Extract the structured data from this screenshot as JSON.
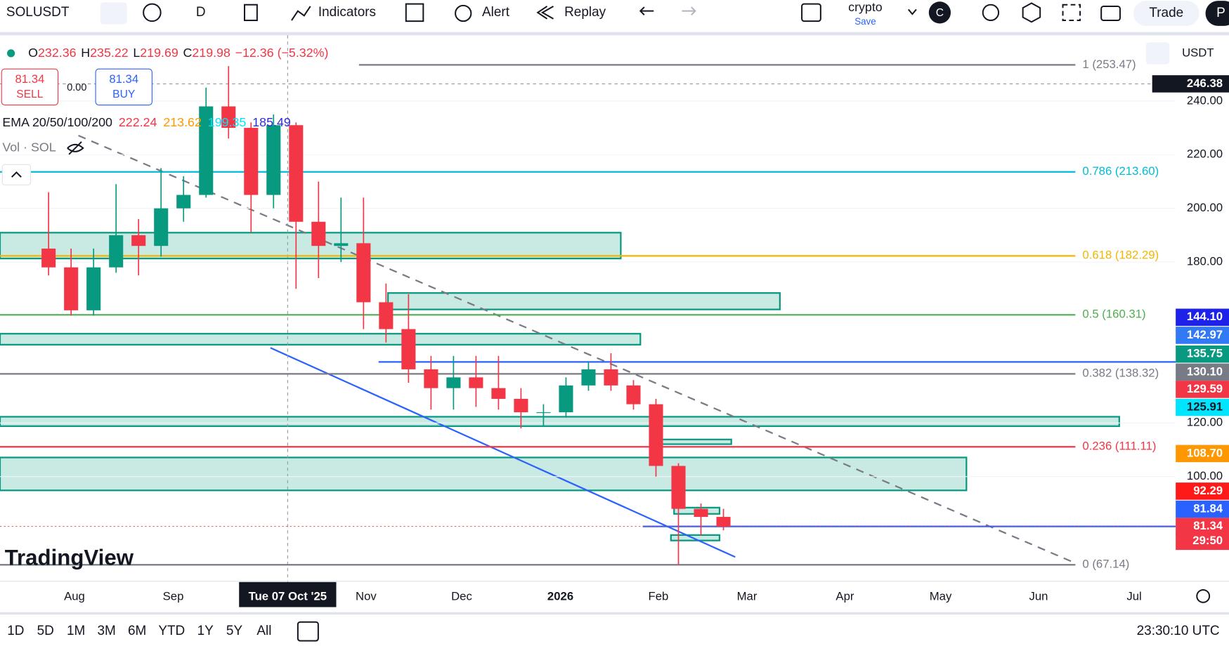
{
  "toolbar": {
    "symbol": "SOLUSDT",
    "interval": "D",
    "indicators": "Indicators",
    "alert": "Alert",
    "replay": "Replay",
    "layout_name": "crypto",
    "layout_status": "Save",
    "avatar": "C",
    "trade": "Trade",
    "cut_button": "P"
  },
  "legend": {
    "ohlc": [
      {
        "label": "O",
        "value": "232.36"
      },
      {
        "label": "H",
        "value": "235.22"
      },
      {
        "label": "L",
        "value": "219.69"
      },
      {
        "label": "C",
        "value": "219.98"
      }
    ],
    "change": "−12.36 (−5.32%)"
  },
  "trade_widget": {
    "sell_price": "81.34",
    "sell": "SELL",
    "spread": "0.00",
    "buy_price": "81.34",
    "buy": "BUY"
  },
  "ema": {
    "name": "EMA 20/50/100/200",
    "values": [
      {
        "text": "222.24",
        "color": "#f23645"
      },
      {
        "text": "213.62",
        "color": "#ff9800"
      },
      {
        "text": "199.35",
        "color": "#00e5ff"
      },
      {
        "text": "185.49",
        "color": "#2a2ed6"
      }
    ]
  },
  "volume": "Vol · SOL",
  "currency": "USDT",
  "logo": "TradingView",
  "chart_data": {
    "type": "candlestick",
    "categories": [
      null,
      null,
      null,
      null,
      null,
      null,
      null,
      null,
      null,
      null,
      null,
      null,
      null,
      null,
      null,
      null,
      null,
      null,
      null,
      null,
      null,
      null,
      null,
      null,
      null,
      null,
      null,
      null,
      null,
      null,
      null
    ],
    "open": [
      185,
      178,
      162,
      178,
      190,
      186,
      200,
      205,
      238,
      230,
      205,
      231,
      195,
      186,
      187,
      165,
      155,
      140,
      133,
      137,
      133,
      129,
      124,
      124,
      134,
      140,
      134,
      127,
      104,
      88,
      85
    ],
    "high": [
      206,
      185,
      185,
      209,
      196,
      215,
      212,
      245,
      253,
      232,
      235,
      232,
      210,
      204,
      204,
      172,
      168,
      145,
      145,
      145,
      145,
      133,
      127,
      137,
      143,
      146,
      136,
      129,
      105,
      90,
      88
    ],
    "low": [
      175,
      160,
      160,
      176,
      175,
      182,
      195,
      204,
      226,
      191,
      200,
      170,
      174,
      180,
      155,
      150,
      135,
      125,
      125,
      126,
      125,
      118,
      119,
      122,
      132,
      132,
      125,
      100,
      67.14,
      78,
      80
    ],
    "close": [
      178,
      162,
      178,
      190,
      186,
      200,
      205,
      238,
      230,
      205,
      231,
      195,
      186,
      187,
      165,
      155,
      140,
      133,
      137,
      133,
      129,
      124,
      124,
      134,
      140,
      134,
      127,
      104,
      88,
      85,
      81.34
    ],
    "up_color": "#089981",
    "down_color": "#f23645",
    "ylim": [
      61.6,
      264.5
    ],
    "yticks": [
      {
        "value": 240,
        "label": "240.00"
      },
      {
        "value": 220,
        "label": "220.00"
      },
      {
        "value": 200,
        "label": "200.00"
      },
      {
        "value": 180,
        "label": "180.00"
      },
      {
        "value": 120,
        "label": "120.00"
      },
      {
        "value": 100,
        "label": "100.00"
      }
    ],
    "fib_levels": [
      {
        "label": "1 (253.47)",
        "value": 253.47,
        "color": "#787b86"
      },
      {
        "label": "0.786 (213.60)",
        "value": 213.6,
        "color": "#00bcd4"
      },
      {
        "label": "0.618 (182.29)",
        "value": 182.29,
        "color": "#f2b600"
      },
      {
        "label": "0.5 (160.31)",
        "value": 160.31,
        "color": "#4caf50"
      },
      {
        "label": "0.382 (138.32)",
        "value": 138.32,
        "color": "#787b86"
      },
      {
        "label": "0.236 (111.11)",
        "value": 111.11,
        "color": "#f23645"
      },
      {
        "label": "0 (67.14)",
        "value": 67.14,
        "color": "#787b86"
      }
    ]
  },
  "price_badges": [
    {
      "text": "246.38",
      "color": "#131722"
    },
    {
      "text": "144.10",
      "color": "#1e22e8"
    },
    {
      "text": "142.97",
      "color": "#3179f5"
    },
    {
      "text": "135.75",
      "color": "#089981"
    },
    {
      "text": "130.10",
      "color": "#787b86"
    },
    {
      "text": "129.59",
      "color": "#f23645"
    },
    {
      "text": "125.91",
      "color": "#00e5ff"
    },
    {
      "text": "108.70",
      "color": "#ff9800"
    },
    {
      "text": "92.29",
      "color": "#ff1a1a"
    },
    {
      "text": "81.84",
      "color": "#2962ff"
    },
    {
      "text": "81.34",
      "color": "#f23645"
    },
    {
      "text": "29:50",
      "color": "#f23645"
    }
  ],
  "time_axis": [
    "Aug",
    "Sep",
    "Tue 07 Oct '25",
    "Nov",
    "Dec",
    "2026",
    "Feb",
    "Mar",
    "Apr",
    "May",
    "Jun",
    "Jul"
  ],
  "ranges": [
    "1D",
    "5D",
    "1M",
    "3M",
    "6M",
    "YTD",
    "1Y",
    "5Y",
    "All"
  ],
  "clock": "23:30:10 UTC"
}
